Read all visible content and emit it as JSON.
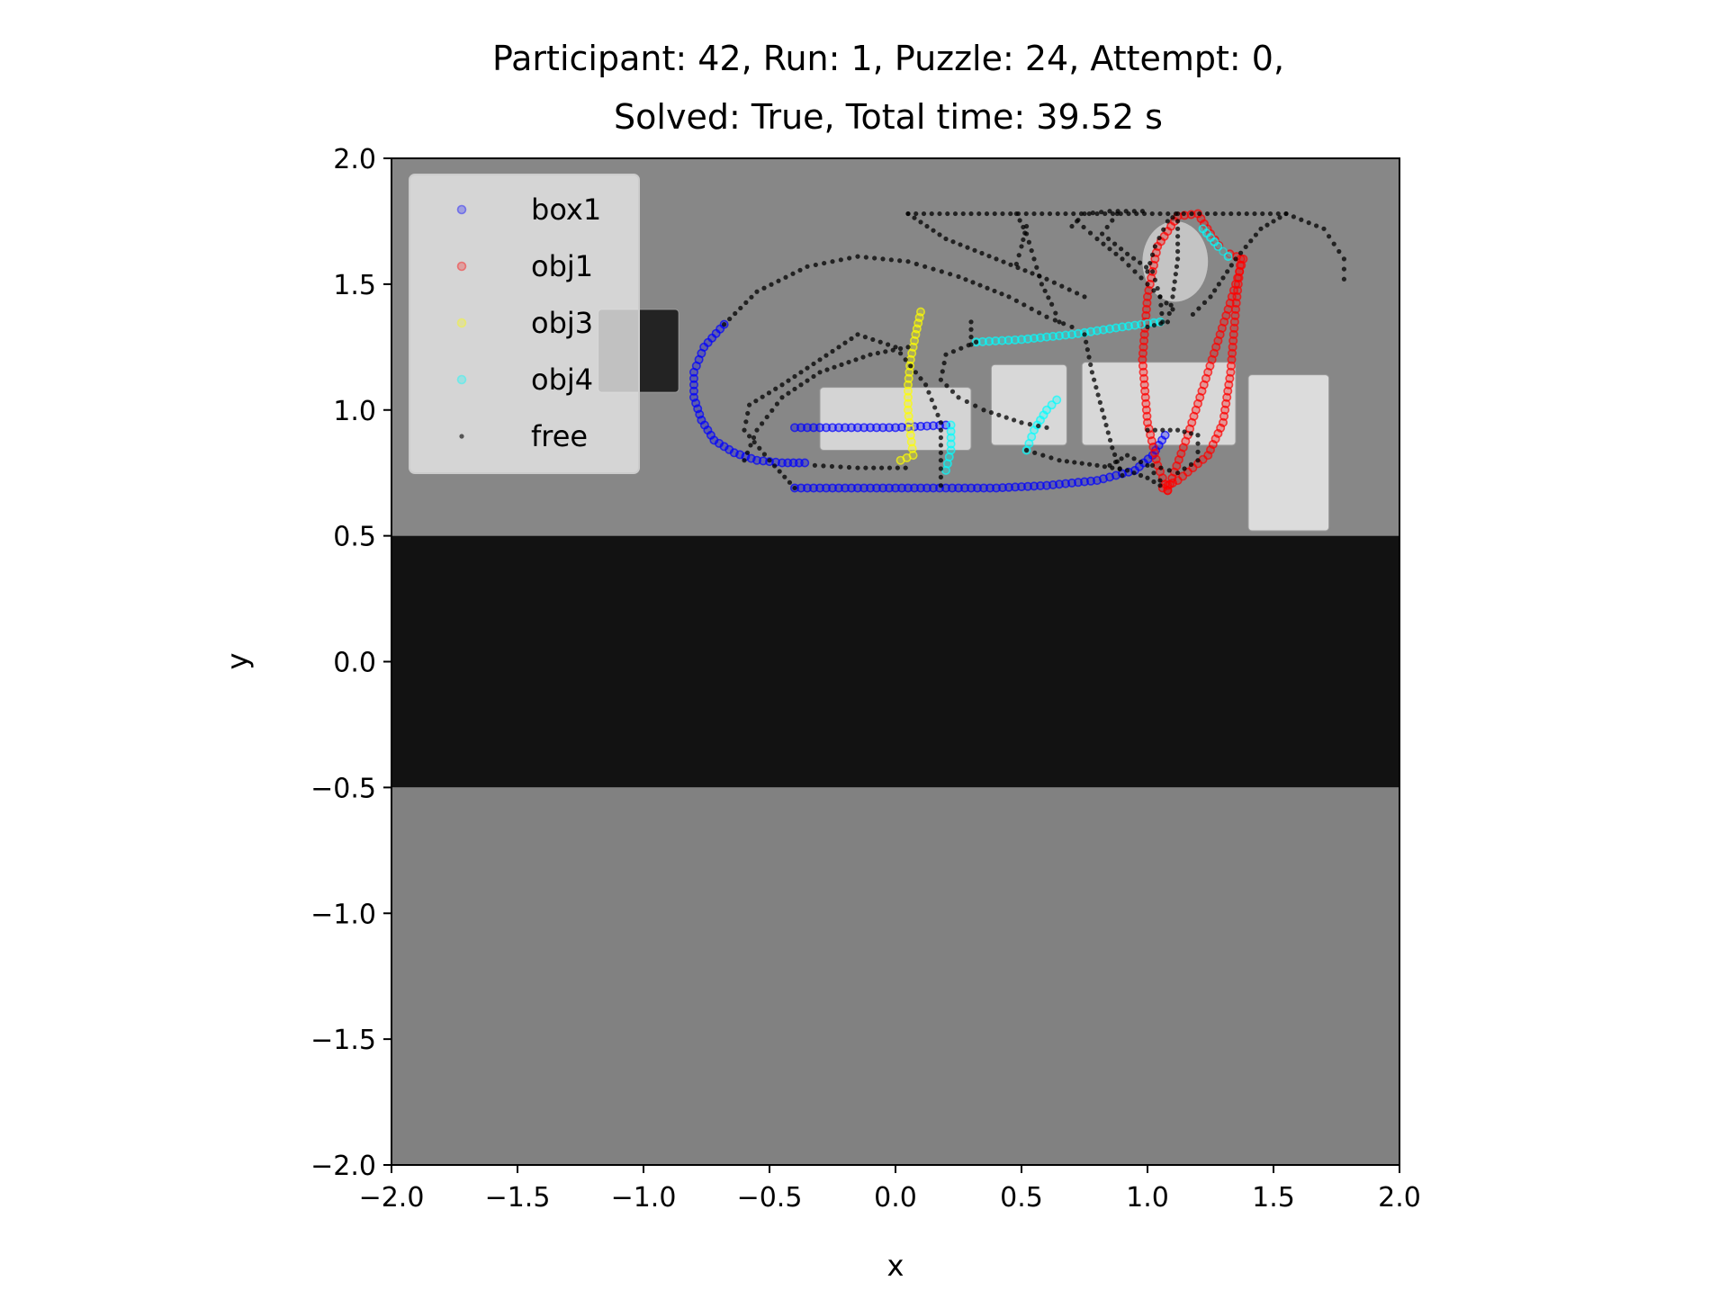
{
  "chart_data": {
    "type": "scatter",
    "title_lines": [
      "Participant: 42, Run: 1, Puzzle: 24, Attempt: 0,",
      "Solved: True, Total time: 39.52 s"
    ],
    "xlabel": "x",
    "ylabel": "y",
    "xlim": [
      -2.0,
      2.0
    ],
    "ylim": [
      -2.0,
      2.0
    ],
    "xticks": [
      -2.0,
      -1.5,
      -1.0,
      -0.5,
      0.0,
      0.5,
      1.0,
      1.5,
      2.0
    ],
    "yticks": [
      -2.0,
      -1.5,
      -1.0,
      -0.5,
      0.0,
      0.5,
      1.0,
      1.5,
      2.0
    ],
    "xtick_labels": [
      "−2.0",
      "−1.5",
      "−1.0",
      "−0.5",
      "0.0",
      "0.5",
      "1.0",
      "1.5",
      "2.0"
    ],
    "ytick_labels": [
      "−2.0",
      "−1.5",
      "−1.0",
      "−0.5",
      "0.0",
      "0.5",
      "1.0",
      "1.5",
      "2.0"
    ],
    "grid": false,
    "legend_position": "top-left",
    "background_regions": [
      {
        "kind": "floor",
        "x": [
          -2.0,
          2.0
        ],
        "y": [
          0.5,
          2.0
        ],
        "color": "#878787"
      },
      {
        "kind": "dark-band",
        "x": [
          -2.0,
          2.0
        ],
        "y": [
          -0.5,
          0.5
        ],
        "color": "#121212"
      },
      {
        "kind": "floor",
        "x": [
          -2.0,
          2.0
        ],
        "y": [
          -2.0,
          -0.5
        ],
        "color": "#818181"
      },
      {
        "kind": "object-dark",
        "x": [
          -1.18,
          -0.86
        ],
        "y": [
          1.07,
          1.4
        ],
        "color": "#232323"
      },
      {
        "kind": "object-light",
        "x": [
          -0.3,
          0.3
        ],
        "y": [
          0.84,
          1.09
        ],
        "color": "#d4d4d4"
      },
      {
        "kind": "object-light",
        "x": [
          0.38,
          0.68
        ],
        "y": [
          0.86,
          1.18
        ],
        "color": "#d8d8d8"
      },
      {
        "kind": "object-light",
        "x": [
          0.74,
          1.35
        ],
        "y": [
          0.86,
          1.19
        ],
        "color": "#d8d8d8"
      },
      {
        "kind": "object-light",
        "x": [
          1.4,
          1.72
        ],
        "y": [
          0.52,
          1.14
        ],
        "color": "#dcdcdc"
      },
      {
        "kind": "object-round",
        "x": [
          0.98,
          1.24
        ],
        "y": [
          1.43,
          1.75
        ],
        "color": "#c4c4c4"
      }
    ],
    "series": [
      {
        "name": "box1",
        "color": "#0000ff",
        "marker": "open-circle",
        "segments": [
          [
            [
              -0.68,
              1.34
            ],
            [
              -0.76,
              1.25
            ],
            [
              -0.8,
              1.15
            ],
            [
              -0.8,
              1.05
            ],
            [
              -0.77,
              0.96
            ],
            [
              -0.72,
              0.88
            ],
            [
              -0.64,
              0.83
            ],
            [
              -0.55,
              0.8
            ],
            [
              -0.45,
              0.79
            ],
            [
              -0.36,
              0.79
            ]
          ],
          [
            [
              -0.4,
              0.93
            ],
            [
              -0.2,
              0.93
            ],
            [
              0.0,
              0.93
            ],
            [
              0.2,
              0.94
            ]
          ],
          [
            [
              -0.4,
              0.69
            ],
            [
              -0.1,
              0.69
            ],
            [
              0.2,
              0.69
            ],
            [
              0.4,
              0.69
            ],
            [
              0.6,
              0.7
            ],
            [
              0.8,
              0.72
            ],
            [
              0.95,
              0.76
            ],
            [
              1.02,
              0.82
            ],
            [
              1.07,
              0.9
            ]
          ]
        ]
      },
      {
        "name": "obj1",
        "color": "#ff0000",
        "marker": "open-circle",
        "segments": [
          [
            [
              1.08,
              0.68
            ],
            [
              1.16,
              0.9
            ],
            [
              1.24,
              1.15
            ],
            [
              1.32,
              1.4
            ],
            [
              1.38,
              1.6
            ],
            [
              1.3,
              1.63
            ],
            [
              1.25,
              1.7
            ],
            [
              1.2,
              1.78
            ],
            [
              1.12,
              1.77
            ],
            [
              1.04,
              1.65
            ],
            [
              1.0,
              1.45
            ],
            [
              0.98,
              1.2
            ],
            [
              1.0,
              0.95
            ],
            [
              1.04,
              0.78
            ],
            [
              1.08,
              0.68
            ]
          ],
          [
            [
              1.37,
              1.6
            ],
            [
              1.35,
              1.4
            ],
            [
              1.33,
              1.15
            ],
            [
              1.3,
              0.95
            ],
            [
              1.24,
              0.82
            ],
            [
              1.12,
              0.72
            ],
            [
              1.06,
              0.69
            ]
          ]
        ]
      },
      {
        "name": "obj3",
        "color": "#ffff00",
        "marker": "open-circle",
        "segments": [
          [
            [
              0.1,
              1.39
            ],
            [
              0.08,
              1.3
            ],
            [
              0.06,
              1.2
            ],
            [
              0.05,
              1.1
            ],
            [
              0.05,
              1.0
            ],
            [
              0.06,
              0.9
            ],
            [
              0.07,
              0.82
            ],
            [
              0.02,
              0.8
            ]
          ]
        ]
      },
      {
        "name": "obj4",
        "color": "#00ffff",
        "marker": "open-circle",
        "segments": [
          [
            [
              0.32,
              1.27
            ],
            [
              0.5,
              1.28
            ],
            [
              0.7,
              1.3
            ],
            [
              0.9,
              1.33
            ],
            [
              1.05,
              1.35
            ]
          ],
          [
            [
              0.52,
              0.84
            ],
            [
              0.55,
              0.92
            ],
            [
              0.6,
              1.0
            ],
            [
              0.64,
              1.04
            ]
          ],
          [
            [
              0.22,
              0.94
            ],
            [
              0.22,
              0.84
            ],
            [
              0.2,
              0.76
            ]
          ],
          [
            [
              1.22,
              1.72
            ],
            [
              1.28,
              1.65
            ],
            [
              1.32,
              1.61
            ]
          ]
        ]
      },
      {
        "name": "free",
        "color": "#000000",
        "marker": "dot",
        "segments": [
          [
            [
              -0.68,
              1.34
            ],
            [
              -0.55,
              1.47
            ],
            [
              -0.35,
              1.57
            ],
            [
              -0.15,
              1.61
            ],
            [
              0.05,
              1.59
            ],
            [
              0.25,
              1.53
            ],
            [
              0.45,
              1.45
            ],
            [
              0.6,
              1.37
            ],
            [
              0.7,
              1.33
            ]
          ],
          [
            [
              0.05,
              1.78
            ],
            [
              0.3,
              1.78
            ],
            [
              0.55,
              1.78
            ],
            [
              0.8,
              1.78
            ],
            [
              1.05,
              1.78
            ],
            [
              1.3,
              1.78
            ],
            [
              1.55,
              1.78
            ],
            [
              1.7,
              1.72
            ],
            [
              1.78,
              1.6
            ],
            [
              1.78,
              1.52
            ]
          ],
          [
            [
              0.05,
              1.78
            ],
            [
              0.2,
              1.68
            ],
            [
              0.4,
              1.6
            ],
            [
              0.6,
              1.52
            ],
            [
              0.75,
              1.45
            ]
          ],
          [
            [
              1.55,
              1.78
            ],
            [
              1.45,
              1.72
            ],
            [
              1.35,
              1.6
            ],
            [
              1.25,
              1.45
            ],
            [
              1.18,
              1.38
            ]
          ],
          [
            [
              0.48,
              1.78
            ],
            [
              0.52,
              1.7
            ],
            [
              0.55,
              1.6
            ],
            [
              0.58,
              1.5
            ],
            [
              0.62,
              1.42
            ],
            [
              0.65,
              1.35
            ]
          ],
          [
            [
              0.72,
              1.75
            ],
            [
              0.8,
              1.68
            ],
            [
              0.9,
              1.6
            ],
            [
              1.0,
              1.5
            ],
            [
              1.1,
              1.4
            ]
          ],
          [
            [
              -0.6,
              0.8
            ],
            [
              -0.55,
              0.92
            ],
            [
              -0.45,
              1.05
            ],
            [
              -0.3,
              1.15
            ],
            [
              -0.1,
              1.22
            ],
            [
              0.05,
              1.25
            ]
          ],
          [
            [
              -0.4,
              0.69
            ],
            [
              -0.5,
              0.8
            ],
            [
              -0.6,
              0.92
            ],
            [
              -0.58,
              1.02
            ],
            [
              -0.45,
              1.1
            ],
            [
              -0.3,
              1.2
            ],
            [
              -0.15,
              1.3
            ],
            [
              0.0,
              1.25
            ],
            [
              0.12,
              1.1
            ],
            [
              0.18,
              0.95
            ],
            [
              0.18,
              0.8
            ],
            [
              0.18,
              0.7
            ]
          ],
          [
            [
              -0.32,
              0.78
            ],
            [
              -0.15,
              0.77
            ],
            [
              0.04,
              0.77
            ]
          ],
          [
            [
              0.3,
              1.35
            ],
            [
              0.3,
              1.26
            ]
          ],
          [
            [
              0.32,
              1.27
            ],
            [
              0.2,
              1.22
            ],
            [
              0.18,
              1.12
            ],
            [
              0.25,
              1.05
            ],
            [
              0.35,
              1.0
            ],
            [
              0.5,
              0.95
            ],
            [
              0.6,
              0.93
            ]
          ],
          [
            [
              0.52,
              0.84
            ],
            [
              0.65,
              0.8
            ],
            [
              0.8,
              0.78
            ],
            [
              0.92,
              0.76
            ],
            [
              1.0,
              0.73
            ],
            [
              1.05,
              0.7
            ]
          ],
          [
            [
              0.75,
              1.3
            ],
            [
              0.78,
              1.15
            ],
            [
              0.82,
              1.0
            ],
            [
              0.86,
              0.85
            ],
            [
              0.9,
              0.74
            ]
          ],
          [
            [
              1.0,
              0.92
            ],
            [
              1.12,
              0.92
            ],
            [
              1.2,
              0.9
            ],
            [
              1.2,
              0.8
            ],
            [
              1.12,
              0.75
            ],
            [
              1.02,
              0.78
            ]
          ],
          [
            [
              1.0,
              1.55
            ],
            [
              1.03,
              1.65
            ],
            [
              1.08,
              1.75
            ],
            [
              1.12,
              1.78
            ],
            [
              1.12,
              1.6
            ],
            [
              1.1,
              1.45
            ],
            [
              1.08,
              1.35
            ],
            [
              1.0,
              1.33
            ]
          ],
          [
            [
              0.88,
              1.78
            ],
            [
              0.82,
              1.7
            ],
            [
              0.92,
              1.62
            ],
            [
              1.02,
              1.55
            ],
            [
              1.05,
              1.45
            ],
            [
              1.06,
              1.35
            ]
          ],
          [
            [
              0.7,
              1.73
            ],
            [
              0.75,
              1.78
            ],
            [
              0.85,
              1.79
            ],
            [
              0.98,
              1.79
            ]
          ],
          [
            [
              0.52,
              1.73
            ],
            [
              0.5,
              1.65
            ],
            [
              0.48,
              1.58
            ]
          ],
          [
            [
              1.05,
              0.72
            ],
            [
              1.0,
              0.78
            ],
            [
              0.92,
              0.82
            ],
            [
              0.85,
              0.78
            ]
          ]
        ]
      }
    ],
    "legend": [
      {
        "label": "box1",
        "color": "#0000ff",
        "marker": "open-circle"
      },
      {
        "label": "obj1",
        "color": "#ff0000",
        "marker": "open-circle"
      },
      {
        "label": "obj3",
        "color": "#ffff00",
        "marker": "open-circle"
      },
      {
        "label": "obj4",
        "color": "#00ffff",
        "marker": "open-circle"
      },
      {
        "label": "free",
        "color": "#000000",
        "marker": "dot"
      }
    ]
  }
}
